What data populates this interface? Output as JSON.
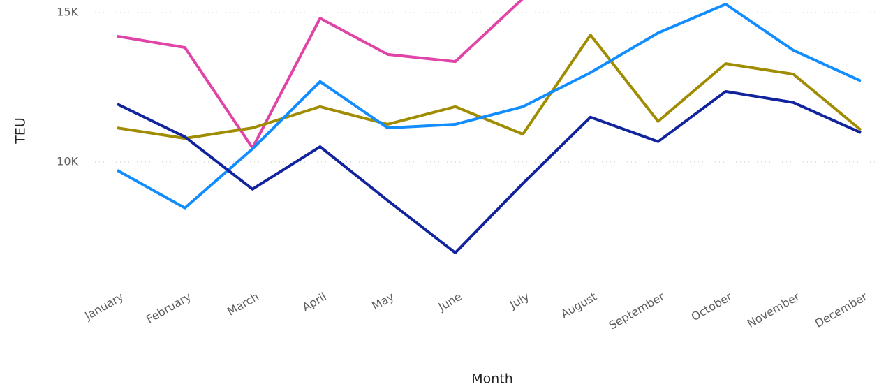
{
  "chart_data": {
    "type": "line",
    "x_label": "Month",
    "y_label": "TEU",
    "categories": [
      "January",
      "February",
      "March",
      "April",
      "May",
      "June",
      "July",
      "August",
      "September",
      "October",
      "November",
      "December"
    ],
    "series": [
      {
        "color": "#e044a7",
        "values": [
          14210,
          13830,
          10470,
          14810,
          13600,
          13360,
          15470,
          null,
          null,
          null,
          null,
          null
        ]
      },
      {
        "color": "#a08c00",
        "values": [
          11140,
          10790,
          11140,
          11850,
          11260,
          11850,
          10930,
          14250,
          11360,
          13290,
          12940,
          11070
        ]
      },
      {
        "color": "#118dff",
        "values": [
          9720,
          8460,
          10440,
          12690,
          11140,
          11260,
          11850,
          12990,
          14320,
          15280,
          13740,
          12710
        ]
      },
      {
        "color": "#12239e",
        "values": [
          11940,
          10840,
          9090,
          10510,
          8710,
          6960,
          9280,
          11500,
          10680,
          12360,
          11990,
          10980
        ]
      }
    ],
    "ylim": [
      6000,
      15400
    ],
    "yticks": [
      {
        "value": 10000,
        "label": "10K"
      },
      {
        "value": 15000,
        "label": "15K"
      }
    ],
    "grid": true
  }
}
